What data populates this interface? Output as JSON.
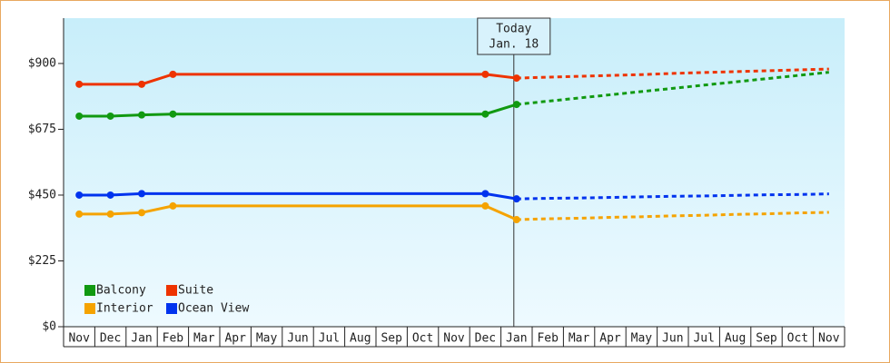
{
  "chart_data": {
    "type": "line",
    "annotation": {
      "lines": [
        "Today",
        "Jan. 18"
      ],
      "category_index": 14
    },
    "categories": [
      "Nov",
      "Dec",
      "Jan",
      "Feb",
      "Mar",
      "Apr",
      "May",
      "Jun",
      "Jul",
      "Aug",
      "Sep",
      "Oct",
      "Nov",
      "Dec",
      "Jan",
      "Feb",
      "Mar",
      "Apr",
      "May",
      "Jun",
      "Jul",
      "Aug",
      "Sep",
      "Oct",
      "Nov"
    ],
    "ylim": [
      0,
      1055
    ],
    "yticks": [
      {
        "value": 0,
        "label": "$0"
      },
      {
        "value": 225,
        "label": "$225"
      },
      {
        "value": 450,
        "label": "$450"
      },
      {
        "value": 675,
        "label": "$675"
      },
      {
        "value": 900,
        "label": "$900"
      }
    ],
    "series": [
      {
        "name": "Balcony",
        "color": "#119911",
        "values": [
          720,
          720,
          724,
          727,
          727,
          727,
          727,
          727,
          727,
          727,
          727,
          727,
          727,
          727,
          760,
          null,
          null,
          null,
          null,
          null,
          null,
          null,
          null,
          null,
          null
        ],
        "projected": [
          null,
          null,
          null,
          null,
          null,
          null,
          null,
          null,
          null,
          null,
          null,
          null,
          null,
          null,
          760,
          771,
          782,
          793,
          804,
          815,
          826,
          837,
          848,
          859,
          870
        ]
      },
      {
        "name": "Suite",
        "color": "#ee3300",
        "values": [
          829,
          829,
          829,
          863,
          863,
          863,
          863,
          863,
          863,
          863,
          863,
          863,
          863,
          863,
          850,
          null,
          null,
          null,
          null,
          null,
          null,
          null,
          null,
          null,
          null
        ],
        "projected": [
          null,
          null,
          null,
          null,
          null,
          null,
          null,
          null,
          null,
          null,
          null,
          null,
          null,
          null,
          850,
          853,
          856,
          859,
          862,
          866,
          869,
          872,
          875,
          878,
          881
        ]
      },
      {
        "name": "Interior",
        "color": "#f5a300",
        "values": [
          385,
          385,
          390,
          413,
          413,
          413,
          413,
          413,
          413,
          413,
          413,
          413,
          413,
          413,
          366,
          null,
          null,
          null,
          null,
          null,
          null,
          null,
          null,
          null,
          null
        ],
        "projected": [
          null,
          null,
          null,
          null,
          null,
          null,
          null,
          null,
          null,
          null,
          null,
          null,
          null,
          null,
          366,
          369,
          371,
          374,
          376,
          379,
          381,
          384,
          386,
          389,
          391
        ]
      },
      {
        "name": "Ocean View",
        "color": "#0033ee",
        "values": [
          450,
          450,
          455,
          455,
          455,
          455,
          455,
          455,
          455,
          455,
          455,
          455,
          455,
          455,
          437,
          null,
          null,
          null,
          null,
          null,
          null,
          null,
          null,
          null,
          null
        ],
        "projected": [
          null,
          null,
          null,
          null,
          null,
          null,
          null,
          null,
          null,
          null,
          null,
          null,
          null,
          null,
          437,
          439,
          440,
          442,
          444,
          446,
          447,
          449,
          451,
          452,
          454
        ]
      }
    ]
  }
}
